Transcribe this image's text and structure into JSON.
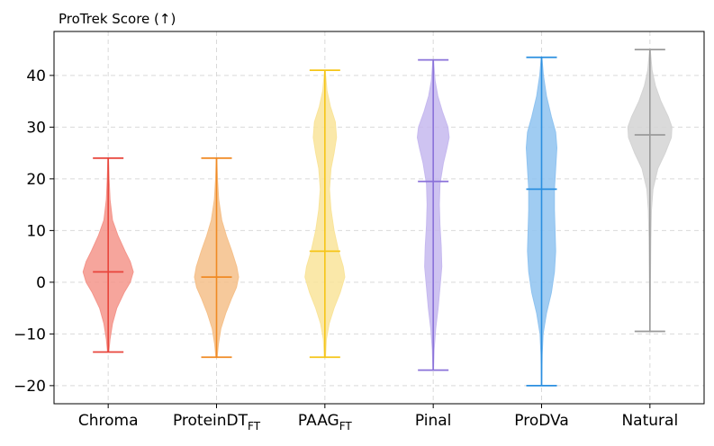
{
  "chart_data": {
    "type": "violin",
    "title": "ProTrek Score (↑)",
    "ylabel": "ProTrek Score (↑)",
    "xlabel": "",
    "ylim": [
      -23.5,
      48.5
    ],
    "yticks": [
      -20,
      -10,
      0,
      10,
      20,
      30,
      40
    ],
    "grid": true,
    "series": [
      {
        "name": "Chroma",
        "label_main": "Chroma",
        "label_sub": "",
        "color": "#e8453c",
        "fill": "#f4958b",
        "min": -13.5,
        "max": 24,
        "median": 2,
        "density": [
          [
            -13.5,
            0.02
          ],
          [
            -11,
            0.06
          ],
          [
            -8,
            0.14
          ],
          [
            -5,
            0.28
          ],
          [
            -2,
            0.52
          ],
          [
            0,
            0.72
          ],
          [
            2,
            0.82
          ],
          [
            4,
            0.72
          ],
          [
            6,
            0.55
          ],
          [
            9,
            0.32
          ],
          [
            12,
            0.14
          ],
          [
            16,
            0.06
          ],
          [
            20,
            0.03
          ],
          [
            24,
            0.01
          ]
        ]
      },
      {
        "name": "ProteinDT_FT",
        "label_main": "ProteinDT",
        "label_sub": "FT",
        "color": "#f08a24",
        "fill": "#f5c08a",
        "min": -14.5,
        "max": 24,
        "median": 1,
        "density": [
          [
            -14.5,
            0.02
          ],
          [
            -12,
            0.06
          ],
          [
            -9,
            0.14
          ],
          [
            -6,
            0.3
          ],
          [
            -3,
            0.5
          ],
          [
            -1,
            0.65
          ],
          [
            1,
            0.72
          ],
          [
            3,
            0.66
          ],
          [
            6,
            0.5
          ],
          [
            9,
            0.32
          ],
          [
            12,
            0.17
          ],
          [
            16,
            0.07
          ],
          [
            20,
            0.03
          ],
          [
            24,
            0.01
          ]
        ]
      },
      {
        "name": "PAAG_FT",
        "label_main": "PAAG",
        "label_sub": "FT",
        "color": "#f5c518",
        "fill": "#f9e49a",
        "min": -14.5,
        "max": 41,
        "median": 6,
        "density": [
          [
            -14.5,
            0.02
          ],
          [
            -11,
            0.05
          ],
          [
            -8,
            0.14
          ],
          [
            -5,
            0.3
          ],
          [
            -2,
            0.5
          ],
          [
            1,
            0.65
          ],
          [
            3,
            0.6
          ],
          [
            6,
            0.45
          ],
          [
            10,
            0.3
          ],
          [
            14,
            0.2
          ],
          [
            18,
            0.15
          ],
          [
            22,
            0.2
          ],
          [
            25,
            0.3
          ],
          [
            28,
            0.38
          ],
          [
            31,
            0.34
          ],
          [
            34,
            0.18
          ],
          [
            37,
            0.07
          ],
          [
            41,
            0.01
          ]
        ]
      },
      {
        "name": "Pinal",
        "label_main": "Pinal",
        "label_sub": "",
        "color": "#8a72d9",
        "fill": "#c6b9ef",
        "min": -17,
        "max": 43,
        "median": 19.5,
        "density": [
          [
            -17,
            0.01
          ],
          [
            -13,
            0.03
          ],
          [
            -9,
            0.08
          ],
          [
            -5,
            0.16
          ],
          [
            -1,
            0.22
          ],
          [
            3,
            0.28
          ],
          [
            7,
            0.26
          ],
          [
            11,
            0.22
          ],
          [
            15,
            0.2
          ],
          [
            19,
            0.22
          ],
          [
            23,
            0.33
          ],
          [
            26,
            0.45
          ],
          [
            28,
            0.52
          ],
          [
            30,
            0.48
          ],
          [
            33,
            0.3
          ],
          [
            36,
            0.15
          ],
          [
            39,
            0.06
          ],
          [
            43,
            0.01
          ]
        ]
      },
      {
        "name": "ProDVa",
        "label_main": "ProDVa",
        "label_sub": "",
        "color": "#2b8fe0",
        "fill": "#8fc3f0",
        "min": -20,
        "max": 43.5,
        "median": 18,
        "density": [
          [
            -20,
            0.005
          ],
          [
            -14,
            0.02
          ],
          [
            -10,
            0.05
          ],
          [
            -6,
            0.16
          ],
          [
            -2,
            0.32
          ],
          [
            2,
            0.42
          ],
          [
            6,
            0.46
          ],
          [
            10,
            0.44
          ],
          [
            14,
            0.42
          ],
          [
            18,
            0.42
          ],
          [
            22,
            0.46
          ],
          [
            26,
            0.5
          ],
          [
            29,
            0.46
          ],
          [
            32,
            0.32
          ],
          [
            36,
            0.16
          ],
          [
            40,
            0.06
          ],
          [
            43.5,
            0.01
          ]
        ]
      },
      {
        "name": "Natural",
        "label_main": "Natural",
        "label_sub": "",
        "color": "#9a9a9a",
        "fill": "#d4d4d4",
        "min": -9.5,
        "max": 45,
        "median": 28.5,
        "density": [
          [
            -9.5,
            0.005
          ],
          [
            -4,
            0.01
          ],
          [
            2,
            0.02
          ],
          [
            8,
            0.03
          ],
          [
            14,
            0.05
          ],
          [
            18,
            0.1
          ],
          [
            22,
            0.26
          ],
          [
            25,
            0.5
          ],
          [
            28,
            0.7
          ],
          [
            30,
            0.72
          ],
          [
            32,
            0.6
          ],
          [
            35,
            0.36
          ],
          [
            38,
            0.18
          ],
          [
            41,
            0.07
          ],
          [
            45,
            0.01
          ]
        ]
      }
    ]
  }
}
